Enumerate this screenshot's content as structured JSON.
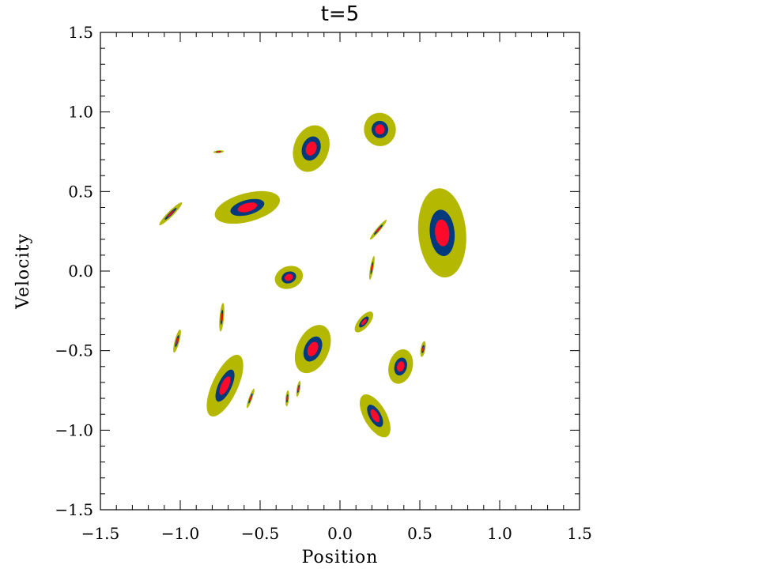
{
  "chart_data": {
    "type": "contour",
    "title": "t=5",
    "xlabel": "Position",
    "ylabel": "Velocity",
    "xlim": [
      -1.5,
      1.5
    ],
    "ylim": [
      -1.5,
      1.5
    ],
    "x_ticks": [
      "−1.5",
      "−1.0",
      "−0.5",
      "0.0",
      "0.5",
      "1.0",
      "1.5"
    ],
    "y_ticks": [
      "−1.5",
      "−1.0",
      "−0.5",
      "0.0",
      "0.5",
      "1.0",
      "1.5"
    ],
    "x_tick_values": [
      -1.5,
      -1.0,
      -0.5,
      0.0,
      0.5,
      1.0,
      1.5
    ],
    "y_tick_values": [
      -1.5,
      -1.0,
      -0.5,
      0.0,
      0.5,
      1.0,
      1.5
    ],
    "grid": false,
    "levels": [
      {
        "level": "low",
        "color": "#b5b800"
      },
      {
        "level": "mid",
        "color": "#003a7d"
      },
      {
        "level": "high",
        "color": "#ff0a2a"
      }
    ],
    "blobs": [
      {
        "x": 0.25,
        "y": 0.89,
        "sx": 0.2,
        "sy": 0.21,
        "angle": 10
      },
      {
        "x": -0.18,
        "y": 0.77,
        "sx": 0.3,
        "sy": 0.22,
        "angle": 70
      },
      {
        "x": -0.76,
        "y": 0.75,
        "sx": 0.065,
        "sy": 0.018,
        "angle": 5
      },
      {
        "x": -0.58,
        "y": 0.4,
        "sx": 0.42,
        "sy": 0.18,
        "angle": 15
      },
      {
        "x": -1.06,
        "y": 0.36,
        "sx": 0.2,
        "sy": 0.035,
        "angle": 45
      },
      {
        "x": 0.64,
        "y": 0.24,
        "sx": 0.56,
        "sy": 0.3,
        "angle": 95
      },
      {
        "x": 0.24,
        "y": 0.26,
        "sx": 0.16,
        "sy": 0.025,
        "angle": 50
      },
      {
        "x": 0.2,
        "y": 0.02,
        "sx": 0.15,
        "sy": 0.022,
        "angle": 80
      },
      {
        "x": -0.32,
        "y": -0.04,
        "sx": 0.18,
        "sy": 0.14,
        "angle": 20
      },
      {
        "x": -0.74,
        "y": -0.29,
        "sx": 0.18,
        "sy": 0.028,
        "angle": 85
      },
      {
        "x": 0.15,
        "y": -0.32,
        "sx": 0.16,
        "sy": 0.07,
        "angle": 50
      },
      {
        "x": -1.02,
        "y": -0.44,
        "sx": 0.15,
        "sy": 0.03,
        "angle": 75
      },
      {
        "x": -0.17,
        "y": -0.49,
        "sx": 0.32,
        "sy": 0.2,
        "angle": 65
      },
      {
        "x": 0.52,
        "y": -0.49,
        "sx": 0.1,
        "sy": 0.03,
        "angle": 80
      },
      {
        "x": 0.38,
        "y": -0.6,
        "sx": 0.22,
        "sy": 0.15,
        "angle": 75
      },
      {
        "x": -0.72,
        "y": -0.72,
        "sx": 0.42,
        "sy": 0.16,
        "angle": 65
      },
      {
        "x": -0.56,
        "y": -0.8,
        "sx": 0.13,
        "sy": 0.022,
        "angle": 70
      },
      {
        "x": -0.33,
        "y": -0.8,
        "sx": 0.1,
        "sy": 0.022,
        "angle": 85
      },
      {
        "x": -0.26,
        "y": -0.74,
        "sx": 0.1,
        "sy": 0.022,
        "angle": 80
      },
      {
        "x": 0.22,
        "y": -0.91,
        "sx": 0.3,
        "sy": 0.14,
        "angle": -60
      }
    ]
  }
}
